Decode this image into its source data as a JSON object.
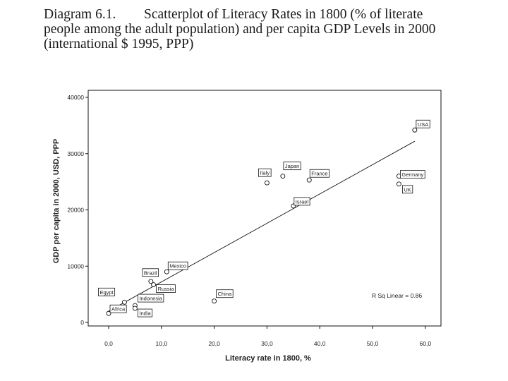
{
  "caption": {
    "label": "Diagram 6.1.",
    "line1": "Scatterplot of Literacy Rates in 1800 (% of literate",
    "line2": "people among the adult population) and per capita GDP Levels in 2000",
    "line3": "(international $ 1995, PPP)"
  },
  "chart_data": {
    "type": "scatter",
    "title": "Diagram 6.1. Scatterplot of Literacy Rates in 1800 (% of literate people among the adult population) and per capita GDP Levels in 2000 (international $ 1995, PPP)",
    "xlabel": "Literacy rate in 1800, %",
    "ylabel": "GDP per capita in 2000, USD, PPP",
    "xlim": [
      -2,
      62
    ],
    "ylim": [
      -500,
      41000
    ],
    "x_ticks": [
      0,
      10,
      20,
      30,
      40,
      50,
      60
    ],
    "x_tick_labels": [
      "0,0",
      "10,0",
      "20,0",
      "30,0",
      "40,0",
      "50,0",
      "60,0"
    ],
    "y_ticks": [
      0,
      10000,
      20000,
      30000,
      40000
    ],
    "y_tick_labels": [
      "0",
      "10000",
      "20000",
      "30000",
      "40000"
    ],
    "grid": false,
    "legend": "none",
    "points": [
      {
        "label": "USA",
        "x": 58,
        "y": 34200
      },
      {
        "label": "Germany",
        "x": 55,
        "y": 26000
      },
      {
        "label": "UK",
        "x": 55,
        "y": 24600
      },
      {
        "label": "France",
        "x": 38,
        "y": 25300
      },
      {
        "label": "Japan",
        "x": 33,
        "y": 26000
      },
      {
        "label": "Italy",
        "x": 30,
        "y": 24800
      },
      {
        "label": "Israel",
        "x": 35,
        "y": 20700
      },
      {
        "label": "Mexico",
        "x": 11,
        "y": 9000
      },
      {
        "label": "Brazil",
        "x": 8,
        "y": 7300
      },
      {
        "label": "Russia",
        "x": 8.5,
        "y": 6700
      },
      {
        "label": "China",
        "x": 20,
        "y": 3800
      },
      {
        "label": "Indonesia",
        "x": 5,
        "y": 3000
      },
      {
        "label": "India",
        "x": 5,
        "y": 2500
      },
      {
        "label": "Egypt",
        "x": 3,
        "y": 3600
      },
      {
        "label": "Africa",
        "x": 0,
        "y": 1600
      }
    ],
    "fit_line": {
      "x": [
        0,
        58
      ],
      "y": [
        2000,
        32200
      ]
    },
    "annotation": "R Sq Linear = 0.86"
  }
}
